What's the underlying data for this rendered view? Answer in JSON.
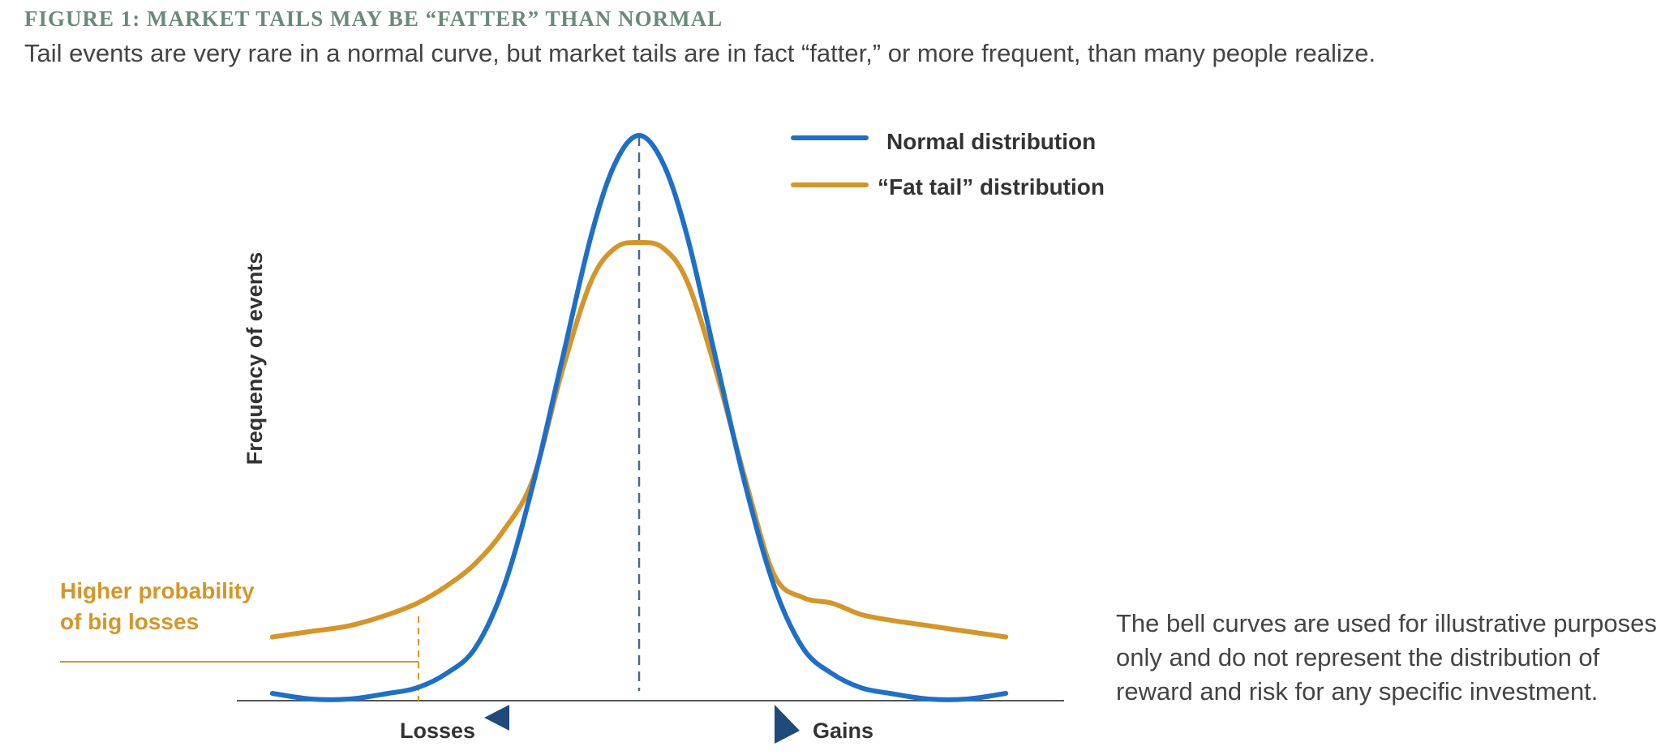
{
  "figure": {
    "title": "FIGURE 1: MARKET TAILS MAY BE “FATTER” THAN NORMAL",
    "subtitle": "Tail events are very rare in a normal curve, but market tails are in fact “fatter,” or more frequent, than many people realize.",
    "note": "The bell curves are used for illustrative purposes only and do not represent the distribution of reward and risk for any specific investment."
  },
  "colors": {
    "normal": "#1f6fc7",
    "fat_tail": "#d4962a",
    "axis": "#555555",
    "arrow": "#1f4a7a",
    "center_line": "#4a6a8a"
  },
  "chart_data": {
    "type": "line",
    "ylabel": "Frequency of events",
    "xlabel_left": "Losses",
    "xlabel_right": "Gains",
    "xlim": [
      -4,
      4
    ],
    "ylim": [
      0,
      1
    ],
    "grid": false,
    "legend_placement": "top-right",
    "series": [
      {
        "name": "Normal distribution",
        "x": [
          -3.8,
          -3.4,
          -3.0,
          -2.6,
          -2.3,
          -2.0,
          -1.7,
          -1.4,
          -1.1,
          -0.8,
          -0.5,
          -0.25,
          0,
          0.25,
          0.5,
          0.8,
          1.1,
          1.4,
          1.7,
          2.0,
          2.3,
          2.6,
          3.0,
          3.4,
          3.8
        ],
        "y": [
          0.01,
          0.0,
          0.0,
          0.01,
          0.02,
          0.045,
          0.09,
          0.2,
          0.38,
          0.6,
          0.82,
          0.95,
          1.0,
          0.95,
          0.82,
          0.6,
          0.38,
          0.2,
          0.09,
          0.045,
          0.02,
          0.01,
          0.0,
          0.0,
          0.01
        ]
      },
      {
        "name": "“Fat tail” distribution",
        "x": [
          -3.8,
          -3.4,
          -3.0,
          -2.6,
          -2.3,
          -2.0,
          -1.7,
          -1.4,
          -1.1,
          -0.8,
          -0.5,
          -0.25,
          0,
          0.25,
          0.5,
          0.8,
          1.1,
          1.4,
          1.7,
          2.0,
          2.3,
          2.6,
          3.0,
          3.4,
          3.8
        ],
        "y": [
          0.11,
          0.12,
          0.13,
          0.15,
          0.17,
          0.2,
          0.24,
          0.3,
          0.39,
          0.58,
          0.74,
          0.8,
          0.81,
          0.8,
          0.74,
          0.58,
          0.39,
          0.22,
          0.18,
          0.17,
          0.15,
          0.14,
          0.13,
          0.12,
          0.11
        ]
      }
    ],
    "annotations": [
      {
        "lines": [
          "Higher probability",
          "of big losses"
        ],
        "x_marker": -2.6
      }
    ]
  }
}
